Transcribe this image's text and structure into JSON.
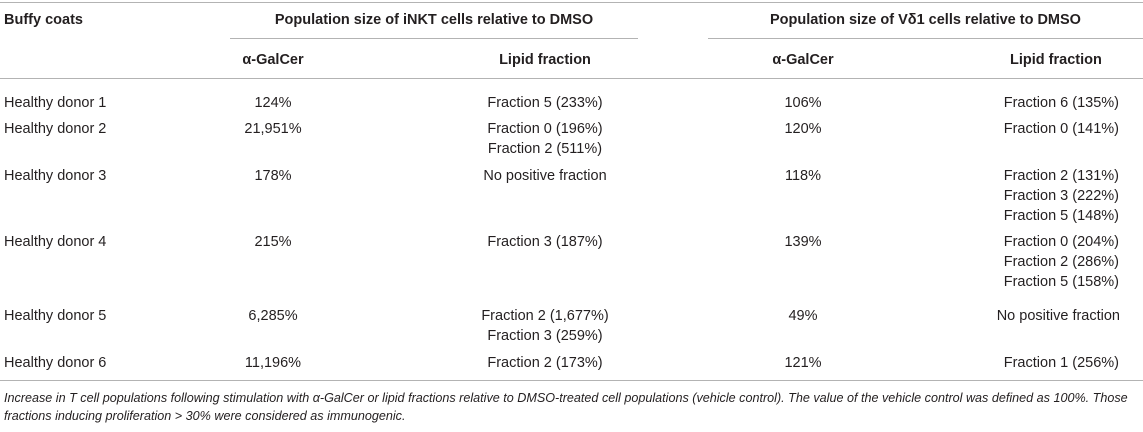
{
  "header": {
    "col_buffy": "Buffy coats",
    "group_inkt": "Population size of iNKT cells relative to DMSO",
    "group_vd1": "Population size of Vδ1 cells relative to DMSO",
    "sub_agalcer_1": "α-GalCer",
    "sub_lipid_1": "Lipid fraction",
    "sub_agalcer_2": "α-GalCer",
    "sub_lipid_2": "Lipid fraction"
  },
  "rows": [
    {
      "donor": "Healthy donor 1",
      "inkt_agalcer": "124%",
      "inkt_lipid": [
        "Fraction 5 (233%)"
      ],
      "vd1_agalcer": "106%",
      "vd1_lipid": [
        "Fraction 6 (135%)"
      ]
    },
    {
      "donor": "Healthy donor 2",
      "inkt_agalcer": "21,951%",
      "inkt_lipid": [
        "Fraction 0 (196%)",
        "Fraction 2 (511%)"
      ],
      "vd1_agalcer": "120%",
      "vd1_lipid": [
        "Fraction 0 (141%)"
      ]
    },
    {
      "donor": "Healthy donor 3",
      "inkt_agalcer": "178%",
      "inkt_lipid": [
        "No positive fraction"
      ],
      "vd1_agalcer": "118%",
      "vd1_lipid": [
        "Fraction 2 (131%)",
        "Fraction 3 (222%)",
        "Fraction 5 (148%)"
      ]
    },
    {
      "donor": "Healthy donor 4",
      "inkt_agalcer": "215%",
      "inkt_lipid": [
        "Fraction 3 (187%)"
      ],
      "vd1_agalcer": "139%",
      "vd1_lipid": [
        "Fraction 0 (204%)",
        "Fraction 2 (286%)",
        "Fraction 5 (158%)"
      ]
    },
    {
      "donor": "Healthy donor 5",
      "inkt_agalcer": "6,285%",
      "inkt_lipid": [
        "Fraction 2 (1,677%)",
        "Fraction 3 (259%)"
      ],
      "vd1_agalcer": "49%",
      "vd1_lipid": [
        "No positive fraction"
      ]
    },
    {
      "donor": "Healthy donor 6",
      "inkt_agalcer": "11,196%",
      "inkt_lipid": [
        "Fraction 2 (173%)"
      ],
      "vd1_agalcer": "121%",
      "vd1_lipid": [
        "Fraction 1 (256%)"
      ]
    }
  ],
  "caption": "Increase in T cell populations following stimulation with α-GalCer or lipid fractions relative to DMSO-treated cell populations (vehicle control). The value of the vehicle control was defined as 100%. Those fractions inducing proliferation > 30% were considered as immunogenic."
}
